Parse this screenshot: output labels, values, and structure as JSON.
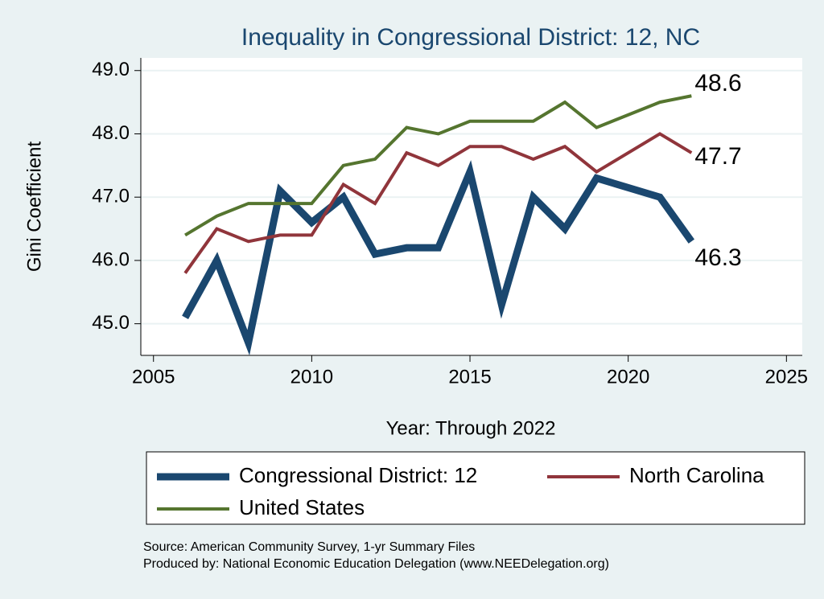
{
  "chart_data": {
    "type": "line",
    "title": "Inequality in Congressional District:  12, NC",
    "x_label": "Year: Through 2022",
    "y_label": "Gini Coefficient",
    "x": [
      2006,
      2007,
      2008,
      2009,
      2010,
      2011,
      2012,
      2013,
      2014,
      2015,
      2016,
      2017,
      2018,
      2019,
      2021,
      2022
    ],
    "series": [
      {
        "name": "Congressional District:  12",
        "color": "#1a476f",
        "values": [
          45.1,
          46.0,
          44.7,
          47.1,
          46.6,
          47.0,
          46.1,
          46.2,
          46.2,
          47.4,
          45.3,
          47.0,
          46.5,
          47.3,
          47.0,
          46.3
        ]
      },
      {
        "name": "North Carolina",
        "color": "#90353b",
        "values": [
          45.8,
          46.5,
          46.3,
          46.4,
          46.4,
          47.2,
          46.9,
          47.7,
          47.5,
          47.8,
          47.8,
          47.6,
          47.8,
          47.4,
          48.0,
          47.7
        ]
      },
      {
        "name": "United States",
        "color": "#55752f",
        "values": [
          46.4,
          46.7,
          46.9,
          46.9,
          46.9,
          47.5,
          47.6,
          48.1,
          48.0,
          48.2,
          48.2,
          48.2,
          48.5,
          48.1,
          48.5,
          48.6
        ]
      }
    ],
    "xlim": [
      2004.6,
      2025.5
    ],
    "xticks": [
      2005,
      2010,
      2015,
      2020,
      2025
    ],
    "ylim": [
      44.5,
      49.2
    ],
    "yticks": [
      {
        "value": 45,
        "label": "45.0"
      },
      {
        "value": 46,
        "label": "46.0"
      },
      {
        "value": 47,
        "label": "47.0"
      },
      {
        "value": 48,
        "label": "48.0"
      },
      {
        "value": 49,
        "label": "49.0"
      }
    ],
    "grid": true,
    "legend": "bottom",
    "notes": [
      "Source: American Community Survey, 1-yr Summary Files",
      "Produced by: National Economic Education Delegation (www.NEEDelegation.org)"
    ]
  }
}
